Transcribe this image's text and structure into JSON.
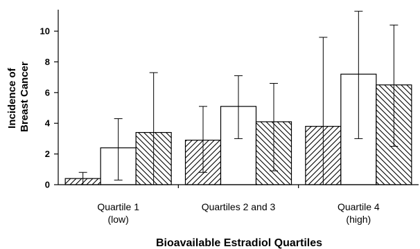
{
  "chart_data": {
    "type": "bar",
    "xlabel": "Bioavailable Estradiol Quartiles",
    "ylabel": [
      "Incidence of",
      "Breast Cancer"
    ],
    "ylim": [
      0,
      11.4
    ],
    "yticks": [
      0,
      2,
      4,
      6,
      8,
      10
    ],
    "categories": [
      [
        "Quartile 1",
        "(low)"
      ],
      [
        "Quartiles 2 and 3"
      ],
      [
        "Quartile 4",
        "(high)"
      ]
    ],
    "series": [
      {
        "pattern": "hatch-forward",
        "values": [
          0.4,
          2.9,
          3.8
        ],
        "err_low": [
          0.0,
          0.8,
          0.0
        ],
        "err_high": [
          0.8,
          5.1,
          9.6
        ]
      },
      {
        "pattern": "solid-white",
        "values": [
          2.4,
          5.1,
          7.2
        ],
        "err_low": [
          0.3,
          3.0,
          3.0
        ],
        "err_high": [
          4.3,
          7.1,
          11.3
        ]
      },
      {
        "pattern": "hatch-backward",
        "values": [
          3.4,
          4.1,
          6.5
        ],
        "err_low": [
          0.0,
          0.9,
          2.5
        ],
        "err_high": [
          7.3,
          6.6,
          10.4
        ]
      }
    ],
    "grid": false,
    "legend": "none"
  }
}
